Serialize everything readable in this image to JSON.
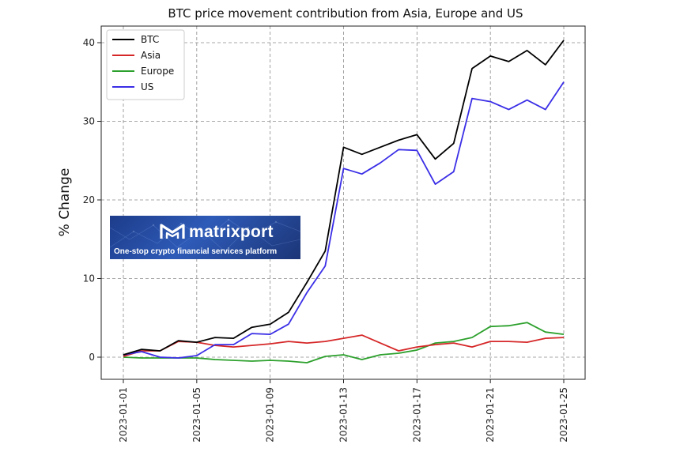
{
  "chart_data": {
    "type": "line",
    "title": "BTC price movement contribution from Asia, Europe and US",
    "xlabel": "",
    "ylabel": "% Change",
    "ylim": [
      -2.8,
      43
    ],
    "yticks": [
      0,
      10,
      20,
      30,
      40
    ],
    "x_start_day": 1,
    "x_end_day": 25,
    "x": [
      1,
      2,
      3,
      4,
      5,
      6,
      7,
      8,
      9,
      10,
      11,
      12,
      13,
      14,
      15,
      16,
      17,
      18,
      19,
      20,
      21,
      22,
      23,
      24,
      25
    ],
    "xtick_labels": [
      "2023-01-01",
      "2023-01-05",
      "2023-01-09",
      "2023-01-13",
      "2023-01-17",
      "2023-01-21",
      "2023-01-25"
    ],
    "xtick_days": [
      1,
      5,
      9,
      13,
      17,
      21,
      25
    ],
    "grid": true,
    "legend_position": "top-left",
    "series": [
      {
        "name": "BTC",
        "color": "#000000",
        "values": [
          0.3,
          1.0,
          0.8,
          2.1,
          1.9,
          2.5,
          2.4,
          3.8,
          4.2,
          5.7,
          9.5,
          13.5,
          26.7,
          25.8,
          26.7,
          27.6,
          28.3,
          25.2,
          27.2,
          36.7,
          38.3,
          37.6,
          39.0,
          37.2,
          40.3
        ]
      },
      {
        "name": "Asia",
        "color": "#d62728",
        "values": [
          0.1,
          0.8,
          0.8,
          2.0,
          1.9,
          1.5,
          1.3,
          1.5,
          1.7,
          2.0,
          1.8,
          2.0,
          2.4,
          2.8,
          1.8,
          0.8,
          1.3,
          1.6,
          1.8,
          1.3,
          2.0,
          2.0,
          1.9,
          2.4,
          2.5
        ]
      },
      {
        "name": "Europe",
        "color": "#2ca02c",
        "values": [
          0.0,
          -0.1,
          -0.1,
          -0.1,
          -0.1,
          -0.3,
          -0.4,
          -0.5,
          -0.4,
          -0.5,
          -0.7,
          0.1,
          0.3,
          -0.3,
          0.3,
          0.5,
          0.9,
          1.8,
          2.0,
          2.5,
          3.9,
          4.0,
          4.4,
          3.2,
          2.9
        ]
      },
      {
        "name": "US",
        "color": "#3a2ee6",
        "values": [
          0.3,
          0.7,
          0.0,
          -0.1,
          0.2,
          1.6,
          1.6,
          3.0,
          2.9,
          4.2,
          8.2,
          11.6,
          24.0,
          23.3,
          24.7,
          26.4,
          26.3,
          22.0,
          23.6,
          32.9,
          32.5,
          31.5,
          32.7,
          31.5,
          35.0
        ]
      }
    ]
  },
  "watermark": {
    "brand": "matrixport",
    "tagline": "One-stop crypto financial services platform"
  }
}
